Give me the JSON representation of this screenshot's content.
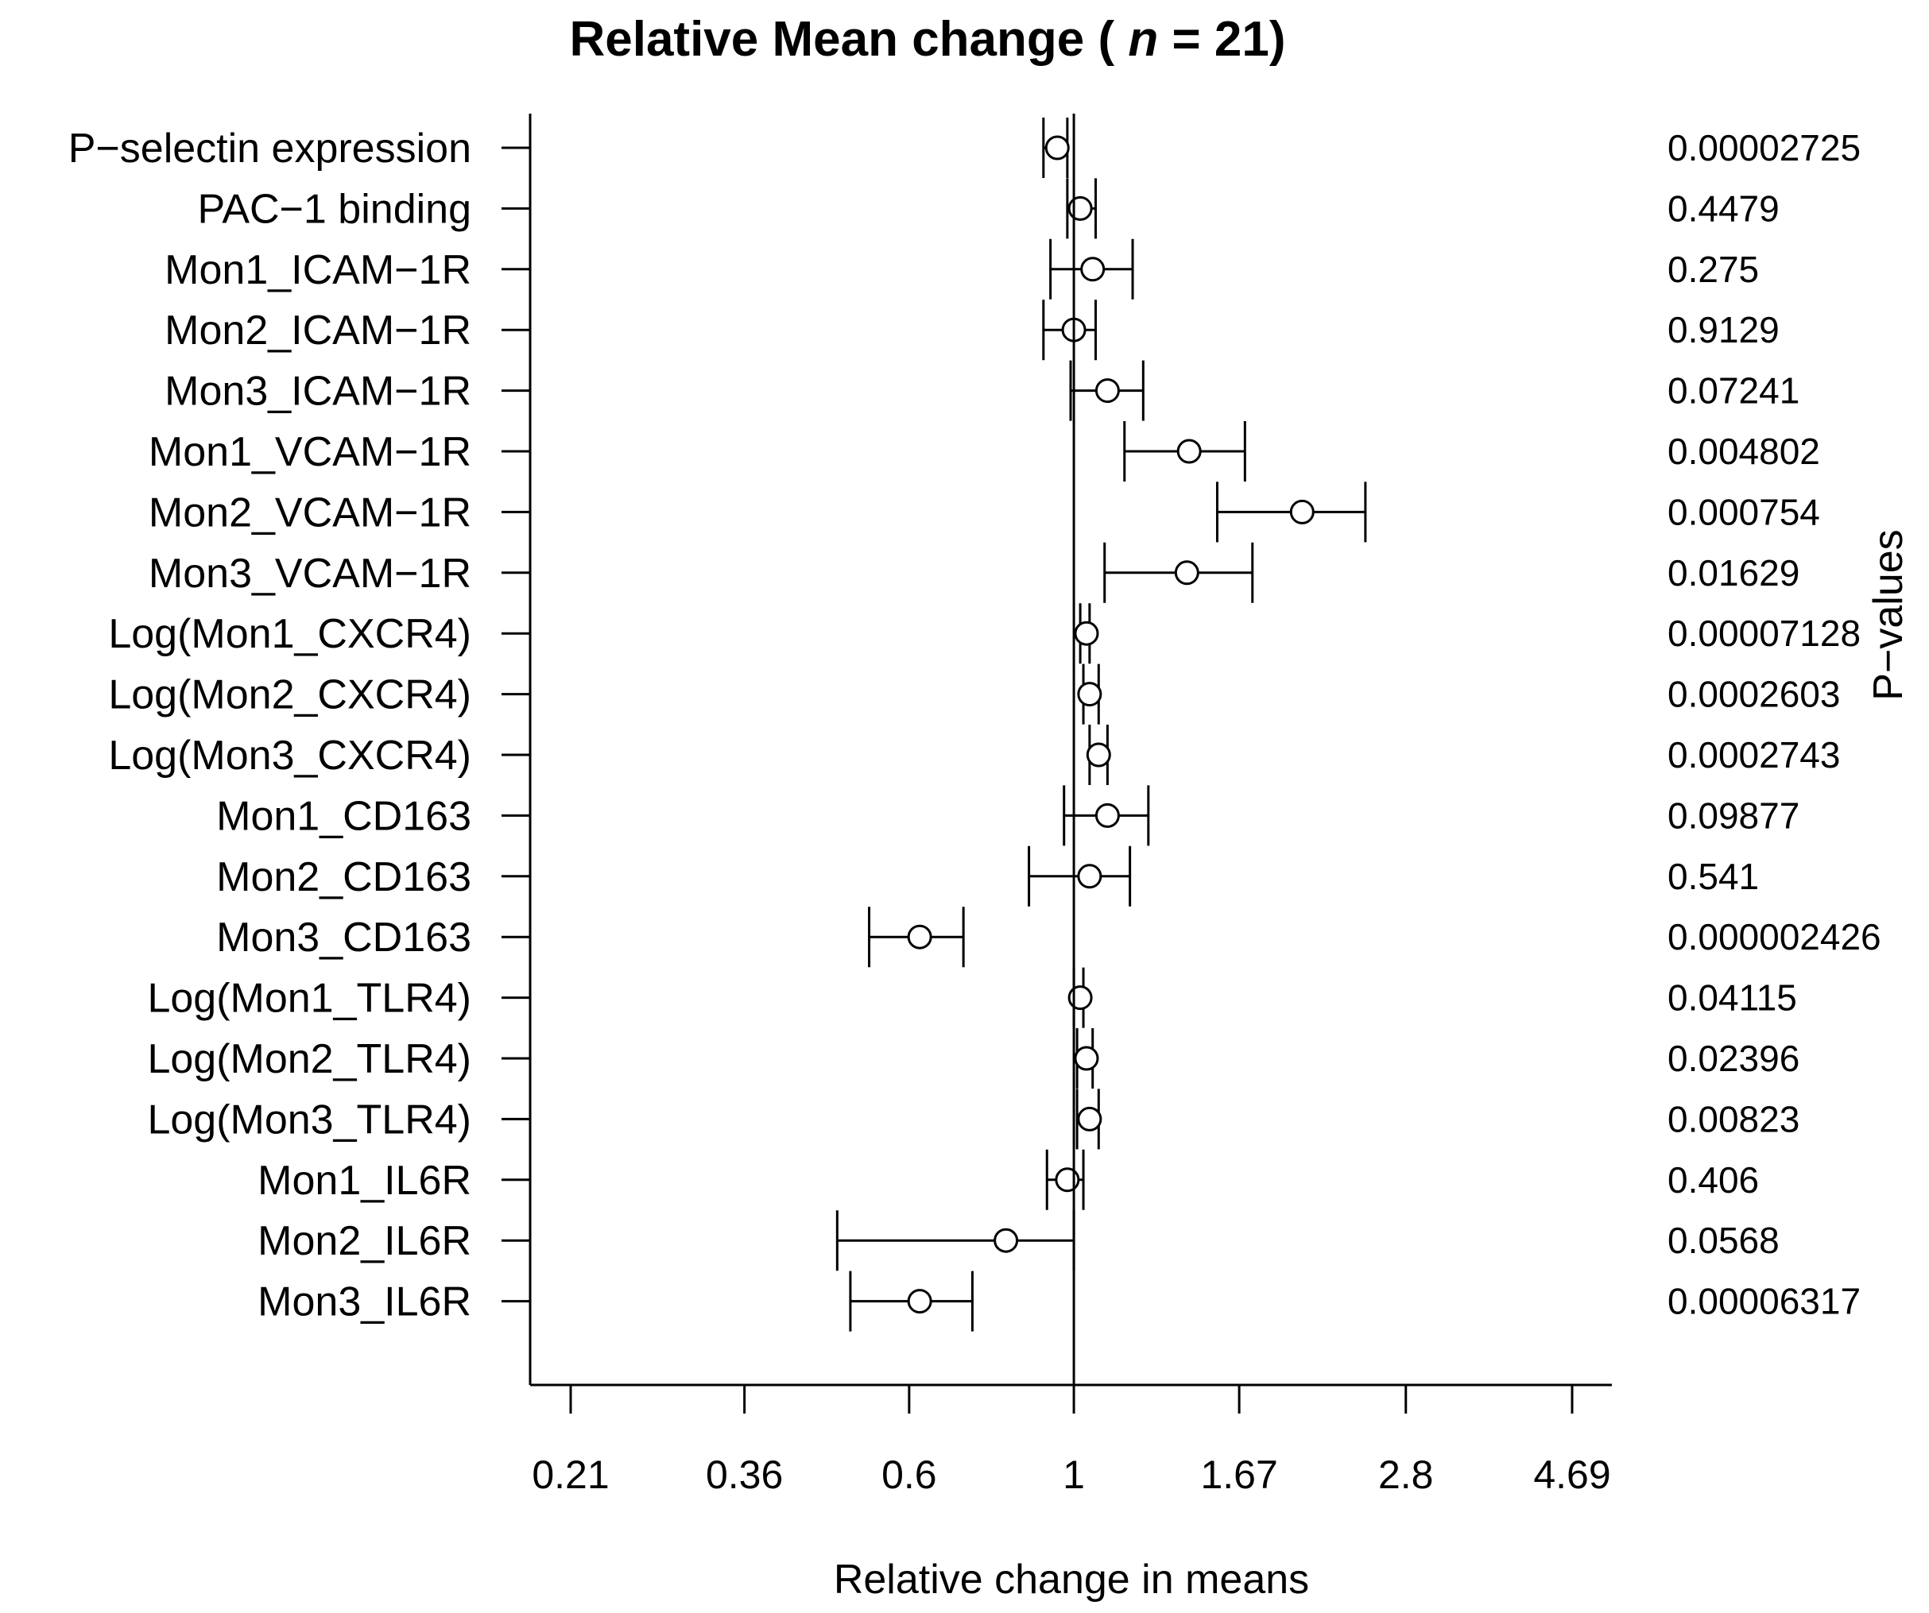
{
  "chart_data": {
    "type": "forest",
    "title": {
      "prefix": "Relative Mean change ( ",
      "n_symbol": "n",
      "suffix": " = 21)"
    },
    "xlabel": "Relative change in means",
    "right_axis_label": "P−values",
    "x_scale": "log",
    "xlim": [
      0.19,
      5.3
    ],
    "x_ticks": [
      0.21,
      0.36,
      0.6,
      1,
      1.67,
      2.8,
      4.69
    ],
    "x_tick_labels": [
      "0.21",
      "0.36",
      "0.6",
      "1",
      "1.67",
      "2.8",
      "4.69"
    ],
    "reference_line": 1,
    "rows": [
      {
        "label": "P−selectin expression",
        "estimate": 0.95,
        "ci_low": 0.91,
        "ci_high": 0.98,
        "p_value": "0.00002725"
      },
      {
        "label": "PAC−1 binding",
        "estimate": 1.02,
        "ci_low": 0.98,
        "ci_high": 1.07,
        "p_value": "0.4479"
      },
      {
        "label": "Mon1_ICAM−1R",
        "estimate": 1.06,
        "ci_low": 0.93,
        "ci_high": 1.2,
        "p_value": "0.275"
      },
      {
        "label": "Mon2_ICAM−1R",
        "estimate": 1.0,
        "ci_low": 0.91,
        "ci_high": 1.07,
        "p_value": "0.9129"
      },
      {
        "label": "Mon3_ICAM−1R",
        "estimate": 1.11,
        "ci_low": 0.99,
        "ci_high": 1.24,
        "p_value": "0.07241"
      },
      {
        "label": "Mon1_VCAM−1R",
        "estimate": 1.43,
        "ci_low": 1.17,
        "ci_high": 1.7,
        "p_value": "0.004802"
      },
      {
        "label": "Mon2_VCAM−1R",
        "estimate": 2.03,
        "ci_low": 1.56,
        "ci_high": 2.47,
        "p_value": "0.000754"
      },
      {
        "label": "Mon3_VCAM−1R",
        "estimate": 1.42,
        "ci_low": 1.1,
        "ci_high": 1.74,
        "p_value": "0.01629"
      },
      {
        "label": "Log(Mon1_CXCR4)",
        "estimate": 1.04,
        "ci_low": 1.02,
        "ci_high": 1.05,
        "p_value": "0.00007128"
      },
      {
        "label": "Log(Mon2_CXCR4)",
        "estimate": 1.05,
        "ci_low": 1.03,
        "ci_high": 1.08,
        "p_value": "0.0002603"
      },
      {
        "label": "Log(Mon3_CXCR4)",
        "estimate": 1.08,
        "ci_low": 1.05,
        "ci_high": 1.11,
        "p_value": "0.0002743"
      },
      {
        "label": "Mon1_CD163",
        "estimate": 1.11,
        "ci_low": 0.97,
        "ci_high": 1.26,
        "p_value": "0.09877"
      },
      {
        "label": "Mon2_CD163",
        "estimate": 1.05,
        "ci_low": 0.87,
        "ci_high": 1.19,
        "p_value": "0.541"
      },
      {
        "label": "Mon3_CD163",
        "estimate": 0.62,
        "ci_low": 0.53,
        "ci_high": 0.71,
        "p_value": "0.000002426"
      },
      {
        "label": "Log(Mon1_TLR4)",
        "estimate": 1.02,
        "ci_low": 1.0,
        "ci_high": 1.03,
        "p_value": "0.04115"
      },
      {
        "label": "Log(Mon2_TLR4)",
        "estimate": 1.04,
        "ci_low": 1.01,
        "ci_high": 1.06,
        "p_value": "0.02396"
      },
      {
        "label": "Log(Mon3_TLR4)",
        "estimate": 1.05,
        "ci_low": 1.01,
        "ci_high": 1.08,
        "p_value": "0.00823"
      },
      {
        "label": "Mon1_IL6R",
        "estimate": 0.98,
        "ci_low": 0.92,
        "ci_high": 1.03,
        "p_value": "0.406"
      },
      {
        "label": "Mon2_IL6R",
        "estimate": 0.81,
        "ci_low": 0.48,
        "ci_high": 1.0,
        "p_value": "0.0568"
      },
      {
        "label": "Mon3_IL6R",
        "estimate": 0.62,
        "ci_low": 0.5,
        "ci_high": 0.73,
        "p_value": "0.00006317"
      }
    ]
  }
}
